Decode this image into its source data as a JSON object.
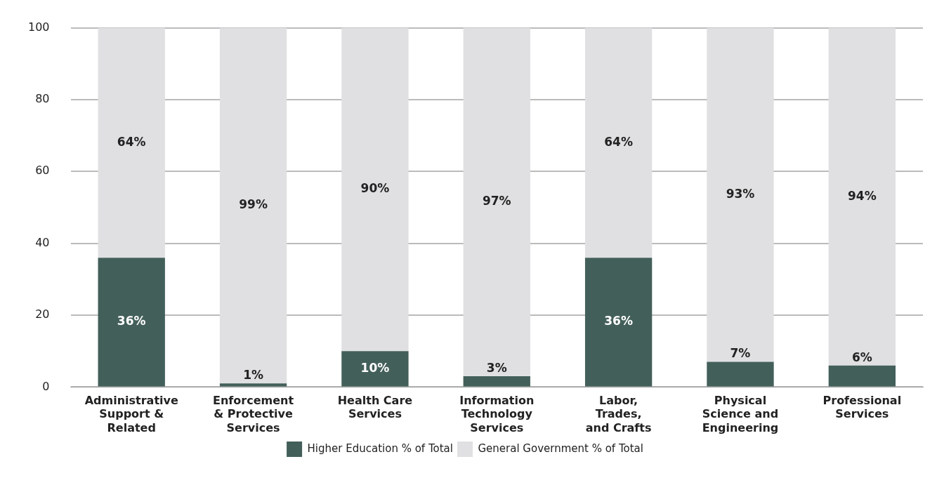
{
  "chart_data": {
    "type": "bar",
    "stacked": true,
    "categories": [
      "Administrative\nSupport &\nRelated",
      "Enforcement\n& Protective\nServices",
      "Health Care\nServices",
      "Information\nTechnology\nServices",
      "Labor,\nTrades,\nand Crafts",
      "Physical\nScience and\nEngineering",
      "Professional\nServices"
    ],
    "series": [
      {
        "name": "Higher Education % of Total",
        "color": "#435f5a",
        "values": [
          36,
          1,
          10,
          3,
          36,
          7,
          6
        ],
        "value_labels": [
          "36%",
          "1%",
          "10%",
          "3%",
          "36%",
          "7%",
          "6%"
        ]
      },
      {
        "name": "General Government % of Total",
        "color": "#e0e0e2",
        "values": [
          64,
          99,
          90,
          97,
          64,
          93,
          94
        ],
        "value_labels": [
          "64%",
          "99%",
          "90%",
          "97%",
          "64%",
          "93%",
          "94%"
        ]
      }
    ],
    "ylim": [
      0,
      100
    ],
    "yticks": [
      0,
      20,
      40,
      60,
      80,
      100
    ],
    "grid": "y",
    "legend": "bottom"
  }
}
